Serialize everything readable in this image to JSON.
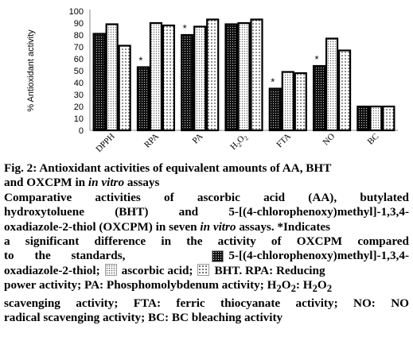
{
  "chart_data": {
    "type": "bar",
    "ylabel": "% Antioxidant activity",
    "ylim": [
      0,
      100
    ],
    "yticks": [
      0,
      10,
      20,
      30,
      40,
      50,
      60,
      70,
      80,
      90,
      100
    ],
    "categories": [
      "DPPH",
      "RPA",
      "PA",
      "H2O2",
      "FTA",
      "NO",
      "BC"
    ],
    "category_labels": [
      {
        "main": "DPPH",
        "sub": ""
      },
      {
        "main": "RPA",
        "sub": ""
      },
      {
        "main": "PA",
        "sub": ""
      },
      {
        "main": "H",
        "sub": "2",
        "main2": "O",
        "sub2": "2"
      },
      {
        "main": "FTA",
        "sub": ""
      },
      {
        "main": "NO",
        "sub": ""
      },
      {
        "main": "BC",
        "sub": ""
      }
    ],
    "series": [
      {
        "values": [
          81,
          53,
          80,
          89,
          35,
          54,
          20
        ],
        "fill": "dark"
      },
      {
        "values": [
          89,
          90,
          87,
          90,
          49,
          77,
          20
        ],
        "fill": "light"
      },
      {
        "values": [
          71,
          88,
          93,
          93,
          48,
          67,
          20
        ],
        "fill": "mid"
      }
    ],
    "significance_marker": "*",
    "significant_categories": [
      "RPA",
      "PA",
      "FTA",
      "NO"
    ],
    "grid": false
  },
  "caption": {
    "fig_label": "Fig. 2:",
    "title_line1": "Antioxidant activities of equivalent amounts of AA, BHT",
    "title_line2_a": "and OXCPM in ",
    "title_line2_italic": "in vitro",
    "title_line2_b": " assays",
    "body_line1": "Comparative activities of ascorbic acid (AA), butylated",
    "body_line2": "hydroxytoluene (BHT) and 5-[(4-chlorophenoxy)methyl]-1,3,4-",
    "body_line3_a": "oxadiazole-2-thiol (OXCPM) in seven ",
    "body_line3_italic": "in vitro",
    "body_line3_b": " assays. *Indicates",
    "body_line4": "a significant difference in the activity of OXCPM compared",
    "body_line5_a": "to the standards,",
    "body_line5_b": "5-[(4-chlorophenoxy)methyl]-1,3,4-",
    "body_line6_a": "oxadiazole-2-thiol;",
    "body_line6_b": "ascorbic acid;",
    "body_line6_c": "BHT. RPA: Reducing",
    "body_line7_a": "power activity; PA: Phosphomolybdenum activity; H",
    "body_line7_sub1": "2",
    "body_line7_b": "O",
    "body_line7_sub2": "2",
    "body_line7_c": ": H",
    "body_line7_sub3": "2",
    "body_line7_d": "O",
    "body_line7_sub4": "2",
    "body_line8": "scavenging activity; FTA: ferric thiocyanate activity; NO: NO",
    "body_line9": "radical scavenging activity; BC: BC bleaching activity"
  }
}
